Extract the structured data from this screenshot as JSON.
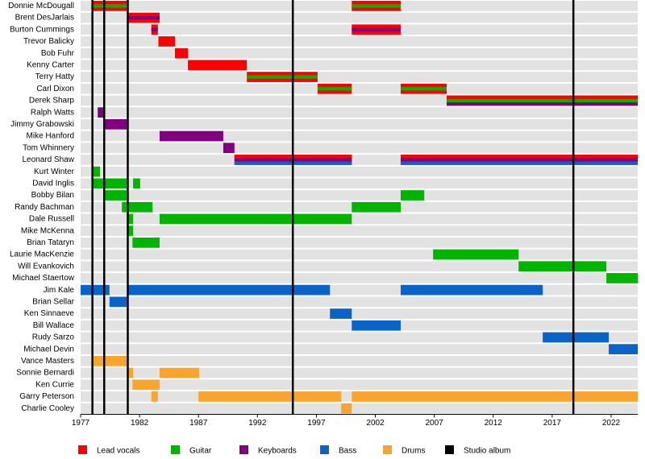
{
  "chart_data": {
    "type": "timeline",
    "roles": [
      {
        "name": "Lead vocals",
        "color": "#ff0000"
      },
      {
        "name": "Guitar",
        "color": "#00b400"
      },
      {
        "name": "Keyboards",
        "color": "#800080"
      },
      {
        "name": "Bass",
        "color": "#0a64c8"
      },
      {
        "name": "Drums",
        "color": "#f8a530"
      }
    ],
    "studio_albums": {
      "name": "Studio album",
      "color": "#000000",
      "values": [
        1978,
        1979,
        1981,
        1995,
        2018.8
      ]
    },
    "members": [
      {
        "name": "Donnie McDougall",
        "periods": [
          {
            "start": 1978,
            "end": 1981,
            "roles": [
              0,
              1
            ]
          },
          {
            "start": 2000,
            "end": 2004.15,
            "roles": [
              0,
              1
            ]
          }
        ]
      },
      {
        "name": "Brent DesJarlais",
        "periods": [
          {
            "start": 1981,
            "end": 1983.7,
            "roles": [
              0,
              2
            ]
          }
        ]
      },
      {
        "name": "Burton Cummings",
        "periods": [
          {
            "start": 1983,
            "end": 1983.55,
            "roles": [
              0,
              2
            ]
          },
          {
            "start": 2000,
            "end": 2004.15,
            "roles": [
              0,
              2
            ]
          }
        ]
      },
      {
        "name": "Trevor Balicky",
        "periods": [
          {
            "start": 1983.6,
            "end": 1985,
            "roles": [
              0
            ]
          }
        ]
      },
      {
        "name": "Bob Fuhr",
        "periods": [
          {
            "start": 1985,
            "end": 1986.1,
            "roles": [
              0
            ]
          }
        ]
      },
      {
        "name": "Kenny Carter",
        "periods": [
          {
            "start": 1986.1,
            "end": 1991.1,
            "roles": [
              0
            ]
          }
        ]
      },
      {
        "name": "Terry Hatty",
        "periods": [
          {
            "start": 1991.1,
            "end": 1997.1,
            "roles": [
              0,
              1
            ]
          }
        ]
      },
      {
        "name": "Carl Dixon",
        "periods": [
          {
            "start": 1997.1,
            "end": 2000,
            "roles": [
              0,
              1
            ]
          },
          {
            "start": 2004.15,
            "end": 2008.05,
            "roles": [
              0,
              1
            ]
          }
        ]
      },
      {
        "name": "Derek Sharp",
        "periods": [
          {
            "start": 2008.05,
            "end": 2024.26,
            "roles": [
              0,
              1,
              2
            ]
          }
        ]
      },
      {
        "name": "Ralph Watts",
        "periods": [
          {
            "start": 1978.45,
            "end": 1979,
            "roles": [
              2
            ]
          }
        ]
      },
      {
        "name": "Jimmy Grabowski",
        "periods": [
          {
            "start": 1979,
            "end": 1981,
            "roles": [
              2
            ]
          }
        ]
      },
      {
        "name": "Mike Hanford",
        "periods": [
          {
            "start": 1983.7,
            "end": 1989.1,
            "roles": [
              2
            ]
          }
        ]
      },
      {
        "name": "Tom Whinnery",
        "periods": [
          {
            "start": 1989.1,
            "end": 1990.05,
            "roles": [
              2
            ]
          }
        ]
      },
      {
        "name": "Leonard Shaw",
        "periods": [
          {
            "start": 1990.05,
            "end": 2000,
            "roles": [
              0,
              2,
              3
            ]
          },
          {
            "start": 2004.15,
            "end": 2024.26,
            "roles": [
              0,
              2,
              3
            ]
          }
        ]
      },
      {
        "name": "Kurt Winter",
        "periods": [
          {
            "start": 1978,
            "end": 1978.65,
            "roles": [
              1
            ]
          }
        ]
      },
      {
        "name": "David Inglis",
        "periods": [
          {
            "start": 1978,
            "end": 1981,
            "roles": [
              1
            ]
          },
          {
            "start": 1981.45,
            "end": 1982.05,
            "roles": [
              1
            ]
          }
        ]
      },
      {
        "name": "Bobby Bilan",
        "periods": [
          {
            "start": 1979,
            "end": 1981,
            "roles": [
              1
            ]
          },
          {
            "start": 2004.15,
            "end": 2006.15,
            "roles": [
              1
            ]
          }
        ]
      },
      {
        "name": "Randy Bachman",
        "periods": [
          {
            "start": 1980.5,
            "end": 1983.1,
            "roles": [
              1
            ]
          },
          {
            "start": 2000,
            "end": 2004.15,
            "roles": [
              1
            ]
          }
        ]
      },
      {
        "name": "Dale Russell",
        "periods": [
          {
            "start": 1981,
            "end": 1981.45,
            "roles": [
              1
            ]
          },
          {
            "start": 1983.7,
            "end": 2000,
            "roles": [
              1
            ]
          }
        ]
      },
      {
        "name": "Mike McKenna",
        "periods": [
          {
            "start": 1981,
            "end": 1981.45,
            "roles": [
              1
            ]
          }
        ]
      },
      {
        "name": "Brian Tataryn",
        "periods": [
          {
            "start": 1981.4,
            "end": 1983.7,
            "roles": [
              1
            ]
          }
        ]
      },
      {
        "name": "Laurie MacKenzie",
        "periods": [
          {
            "start": 2006.9,
            "end": 2014.15,
            "roles": [
              1
            ]
          }
        ]
      },
      {
        "name": "Will Evankovich",
        "periods": [
          {
            "start": 2014.15,
            "end": 2021.6,
            "roles": [
              1
            ]
          }
        ]
      },
      {
        "name": "Michael Staertow",
        "periods": [
          {
            "start": 2021.6,
            "end": 2024.26,
            "roles": [
              1
            ]
          }
        ]
      },
      {
        "name": "Jim Kale",
        "periods": [
          {
            "start": 1977,
            "end": 1979.45,
            "roles": [
              3
            ]
          },
          {
            "start": 1981,
            "end": 1998.15,
            "roles": [
              3
            ]
          },
          {
            "start": 2004.15,
            "end": 2016.2,
            "roles": [
              3
            ]
          }
        ]
      },
      {
        "name": "Brian Sellar",
        "periods": [
          {
            "start": 1979.45,
            "end": 1981,
            "roles": [
              3
            ]
          }
        ]
      },
      {
        "name": "Ken Sinnaeve",
        "periods": [
          {
            "start": 1998.15,
            "end": 2000,
            "roles": [
              3
            ]
          }
        ]
      },
      {
        "name": "Bill Wallace",
        "periods": [
          {
            "start": 2000,
            "end": 2004.15,
            "roles": [
              3
            ]
          }
        ]
      },
      {
        "name": "Rudy Sarzo",
        "periods": [
          {
            "start": 2016.2,
            "end": 2021.8,
            "roles": [
              3
            ]
          }
        ]
      },
      {
        "name": "Michael Devin",
        "periods": [
          {
            "start": 2021.8,
            "end": 2024.26,
            "roles": [
              3
            ]
          }
        ]
      },
      {
        "name": "Vance Masters",
        "periods": [
          {
            "start": 1978,
            "end": 1981,
            "roles": [
              4
            ]
          }
        ]
      },
      {
        "name": "Sonnie Bernardi",
        "periods": [
          {
            "start": 1981,
            "end": 1981.45,
            "roles": [
              4
            ]
          },
          {
            "start": 1983.7,
            "end": 1987.05,
            "roles": [
              4
            ]
          }
        ]
      },
      {
        "name": "Ken Currie",
        "periods": [
          {
            "start": 1981.4,
            "end": 1983.7,
            "roles": [
              4
            ]
          }
        ]
      },
      {
        "name": "Garry Peterson",
        "periods": [
          {
            "start": 1983,
            "end": 1983.55,
            "roles": [
              4
            ]
          },
          {
            "start": 1987,
            "end": 1999.1,
            "roles": [
              4
            ]
          },
          {
            "start": 2000,
            "end": 2024.26,
            "roles": [
              4
            ]
          }
        ]
      },
      {
        "name": "Charlie Cooley",
        "periods": [
          {
            "start": 1999.1,
            "end": 2000,
            "roles": [
              4
            ]
          }
        ]
      }
    ],
    "xlim": [
      1977,
      2024.26
    ],
    "xticks": [
      1977,
      1982,
      1987,
      1992,
      1997,
      2002,
      2007,
      2012,
      2017,
      2022
    ]
  }
}
